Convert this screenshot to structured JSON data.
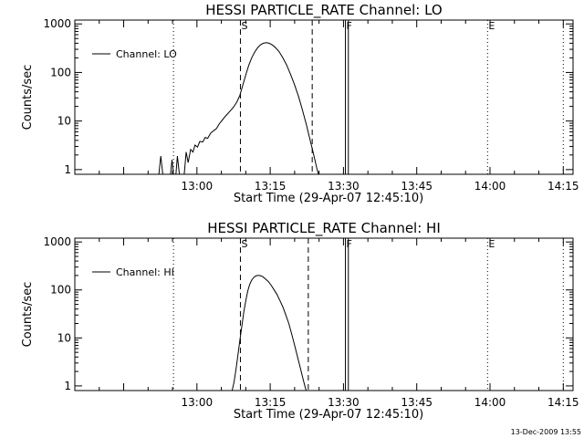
{
  "footer": {
    "timestamp": "13-Dec-2009 13:55"
  },
  "chart_data": [
    {
      "type": "line",
      "title": "HESSI PARTICLE_RATE Channel: LO",
      "xlabel": "Start Time (29-Apr-07 12:45:10)",
      "ylabel": "Counts/sec",
      "scale": {
        "y": "log"
      },
      "xlim": [
        -10,
        92
      ],
      "ylim": [
        0.8,
        1200
      ],
      "xticks": [
        {
          "label": "13:00",
          "t": 15
        },
        {
          "label": "13:15",
          "t": 30
        },
        {
          "label": "13:30",
          "t": 45
        },
        {
          "label": "13:45",
          "t": 60
        },
        {
          "label": "14:00",
          "t": 75
        },
        {
          "label": "14:15",
          "t": 90
        }
      ],
      "yticks": [
        {
          "label": "1",
          "v": 1
        },
        {
          "label": "10",
          "v": 10
        },
        {
          "label": "100",
          "v": 100
        },
        {
          "label": "1000",
          "v": 1000
        }
      ],
      "legend": {
        "position": "top-left",
        "entries": [
          "Channel: LO"
        ]
      },
      "markers": [
        {
          "t": 10.2,
          "style": "dotted",
          "label": ""
        },
        {
          "t": 23.9,
          "style": "dashed",
          "label": "S"
        },
        {
          "t": 38.6,
          "style": "dashed",
          "label": ""
        },
        {
          "t": 45.4,
          "style": "solid",
          "label": "F"
        },
        {
          "t": 46.0,
          "style": "solid",
          "label": ""
        },
        {
          "t": 74.5,
          "style": "dotted",
          "label": "E"
        },
        {
          "t": 90.0,
          "style": "dotted",
          "label": ""
        }
      ],
      "series": [
        {
          "name": "Channel: LO",
          "points": [
            [
              7.2,
              0.8
            ],
            [
              7.6,
              1.9
            ],
            [
              8.0,
              0.8
            ],
            [
              9.6,
              0.8
            ],
            [
              9.9,
              1.6
            ],
            [
              10.2,
              0.8
            ],
            [
              10.7,
              0.8
            ],
            [
              11.0,
              1.9
            ],
            [
              11.4,
              0.8
            ],
            [
              12.4,
              0.8
            ],
            [
              12.8,
              2.3
            ],
            [
              13.2,
              1.4
            ],
            [
              13.7,
              2.6
            ],
            [
              14.2,
              2.3
            ],
            [
              14.6,
              3.2
            ],
            [
              15.1,
              2.9
            ],
            [
              15.6,
              3.8
            ],
            [
              16.2,
              3.7
            ],
            [
              16.7,
              4.6
            ],
            [
              17.2,
              4.4
            ],
            [
              17.8,
              5.6
            ],
            [
              18.4,
              6.3
            ],
            [
              19.0,
              7.0
            ],
            [
              19.6,
              8.8
            ],
            [
              20.2,
              10.5
            ],
            [
              20.8,
              12.5
            ],
            [
              21.4,
              14.5
            ],
            [
              22.0,
              17
            ],
            [
              22.6,
              20
            ],
            [
              23.2,
              25
            ],
            [
              23.8,
              34
            ],
            [
              24.4,
              55
            ],
            [
              25.0,
              90
            ],
            [
              25.6,
              140
            ],
            [
              26.2,
              200
            ],
            [
              26.8,
              260
            ],
            [
              27.4,
              320
            ],
            [
              28.0,
              370
            ],
            [
              28.6,
              400
            ],
            [
              29.2,
              410
            ],
            [
              29.8,
              400
            ],
            [
              30.4,
              370
            ],
            [
              31.0,
              330
            ],
            [
              31.8,
              270
            ],
            [
              32.6,
              200
            ],
            [
              33.4,
              140
            ],
            [
              34.2,
              90
            ],
            [
              35.0,
              55
            ],
            [
              35.8,
              32
            ],
            [
              36.6,
              17
            ],
            [
              37.4,
              8.5
            ],
            [
              38.0,
              4.8
            ],
            [
              38.6,
              2.7
            ],
            [
              39.2,
              1.5
            ],
            [
              39.6,
              1.0
            ],
            [
              39.9,
              0.8
            ]
          ]
        }
      ]
    },
    {
      "type": "line",
      "title": "HESSI PARTICLE_RATE Channel: HI",
      "xlabel": "Start Time (29-Apr-07 12:45:10)",
      "ylabel": "Counts/sec",
      "scale": {
        "y": "log"
      },
      "xlim": [
        -10,
        92
      ],
      "ylim": [
        0.8,
        1200
      ],
      "xticks": [
        {
          "label": "13:00",
          "t": 15
        },
        {
          "label": "13:15",
          "t": 30
        },
        {
          "label": "13:30",
          "t": 45
        },
        {
          "label": "13:45",
          "t": 60
        },
        {
          "label": "14:00",
          "t": 75
        },
        {
          "label": "14:15",
          "t": 90
        }
      ],
      "yticks": [
        {
          "label": "1",
          "v": 1
        },
        {
          "label": "10",
          "v": 10
        },
        {
          "label": "100",
          "v": 100
        },
        {
          "label": "1000",
          "v": 1000
        }
      ],
      "legend": {
        "position": "top-left",
        "entries": [
          "Channel: HI"
        ]
      },
      "markers": [
        {
          "t": 10.2,
          "style": "dotted",
          "label": ""
        },
        {
          "t": 23.9,
          "style": "dashed",
          "label": "S"
        },
        {
          "t": 37.8,
          "style": "dashed",
          "label": ""
        },
        {
          "t": 45.4,
          "style": "solid",
          "label": "F"
        },
        {
          "t": 46.0,
          "style": "solid",
          "label": ""
        },
        {
          "t": 74.5,
          "style": "dotted",
          "label": "E"
        },
        {
          "t": 90.0,
          "style": "dotted",
          "label": ""
        }
      ],
      "series": [
        {
          "name": "Channel: HI",
          "points": [
            [
              22.2,
              0.8
            ],
            [
              22.6,
              1.2
            ],
            [
              23.0,
              2.2
            ],
            [
              23.4,
              4.5
            ],
            [
              23.8,
              9
            ],
            [
              24.2,
              18
            ],
            [
              24.6,
              35
            ],
            [
              25.0,
              60
            ],
            [
              25.4,
              95
            ],
            [
              25.8,
              130
            ],
            [
              26.2,
              160
            ],
            [
              26.6,
              180
            ],
            [
              27.0,
              195
            ],
            [
              27.4,
              200
            ],
            [
              27.8,
              200
            ],
            [
              28.2,
              195
            ],
            [
              28.6,
              185
            ],
            [
              29.0,
              170
            ],
            [
              29.6,
              150
            ],
            [
              30.2,
              125
            ],
            [
              30.8,
              100
            ],
            [
              31.4,
              80
            ],
            [
              32.0,
              60
            ],
            [
              32.6,
              44
            ],
            [
              33.2,
              30
            ],
            [
              33.8,
              20
            ],
            [
              34.4,
              12
            ],
            [
              35.0,
              7
            ],
            [
              35.6,
              4
            ],
            [
              36.2,
              2.3
            ],
            [
              36.8,
              1.3
            ],
            [
              37.2,
              0.9
            ],
            [
              37.4,
              0.8
            ]
          ]
        }
      ]
    }
  ]
}
